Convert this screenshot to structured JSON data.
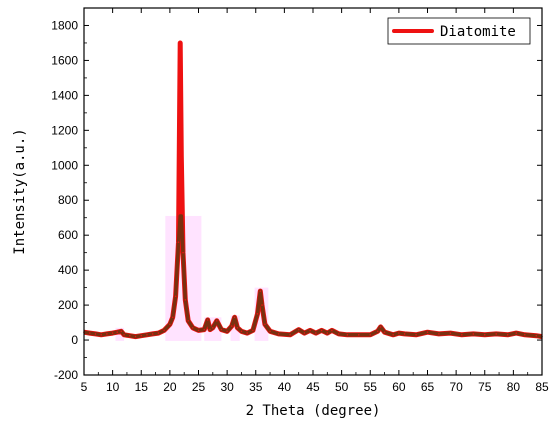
{
  "chart_data": {
    "type": "line",
    "title": "",
    "xlabel": "2 Theta (degree)",
    "ylabel": "Intensity(a.u.)",
    "xlim": [
      5,
      85
    ],
    "ylim": [
      -200,
      1900
    ],
    "x_ticks": [
      5,
      10,
      15,
      20,
      25,
      30,
      35,
      40,
      45,
      50,
      55,
      60,
      65,
      70,
      75,
      80,
      85
    ],
    "y_ticks": [
      -200,
      0,
      200,
      400,
      600,
      800,
      1000,
      1200,
      1400,
      1600,
      1800
    ],
    "grid": false,
    "legend_position": "top-right",
    "colors": {
      "series": "#ee1111",
      "overlay": "#7a3010",
      "highlight": "#ffccff"
    },
    "series": [
      {
        "name": "Diatomite",
        "x": [
          5,
          6,
          7,
          8,
          9,
          10,
          10.8,
          11.5,
          12,
          13,
          14,
          15,
          16,
          17,
          18,
          19,
          20,
          20.5,
          21,
          21.5,
          21.8,
          22,
          22.3,
          22.7,
          23.2,
          24,
          25,
          26,
          26.6,
          27,
          27.5,
          28.2,
          29,
          30,
          30.8,
          31.3,
          31.8,
          32.5,
          33.5,
          34.5,
          35.3,
          35.8,
          36.1,
          36.6,
          37.5,
          39,
          41,
          42.5,
          43.5,
          44.5,
          45.5,
          46.5,
          47.5,
          48.3,
          49.5,
          51,
          53,
          55,
          56.3,
          56.8,
          57.5,
          59,
          60,
          61,
          63,
          65,
          67,
          69,
          71,
          73,
          75,
          77,
          79,
          80.5,
          82,
          84,
          85
        ],
        "y": [
          45,
          40,
          35,
          30,
          35,
          40,
          45,
          50,
          30,
          25,
          20,
          25,
          30,
          35,
          40,
          55,
          90,
          130,
          250,
          560,
          1700,
          1050,
          500,
          230,
          110,
          70,
          55,
          60,
          115,
          60,
          70,
          110,
          60,
          50,
          80,
          130,
          70,
          50,
          40,
          55,
          150,
          280,
          200,
          90,
          50,
          35,
          30,
          60,
          40,
          55,
          40,
          55,
          40,
          55,
          35,
          30,
          30,
          30,
          50,
          75,
          45,
          30,
          40,
          35,
          30,
          45,
          35,
          40,
          30,
          35,
          30,
          35,
          30,
          40,
          30,
          25,
          20
        ]
      }
    ]
  }
}
